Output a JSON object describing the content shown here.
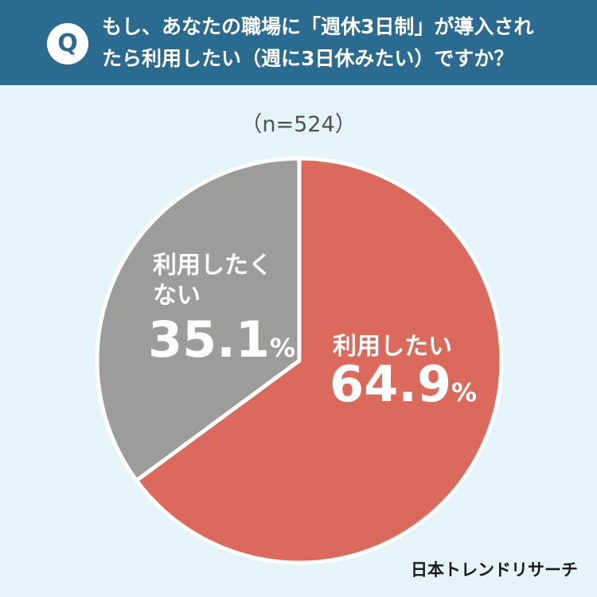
{
  "question": {
    "badge": "Q",
    "line1": "もし、あなたの職場に「週休3日制」が導入され",
    "line2": "たら利用したい（週に3日休みたい）ですか？"
  },
  "sample_size": "（n=524）",
  "brand": "日本トレンドリサーチ",
  "colors": {
    "header": "#2a6b8f",
    "background": "#e4f4f8",
    "yes": "#dc6a5c",
    "no": "#9c9c9a"
  },
  "chart_data": {
    "type": "pie",
    "title": "",
    "slices": [
      {
        "name": "利用したい",
        "value": 64.9,
        "percent_text": "64.9",
        "color": "#dc6a5c"
      },
      {
        "name_line1": "利用したく",
        "name_line2": "ない",
        "value": 35.1,
        "percent_text": "35.1",
        "color": "#9c9c9a"
      }
    ],
    "percent_sign": "%"
  }
}
